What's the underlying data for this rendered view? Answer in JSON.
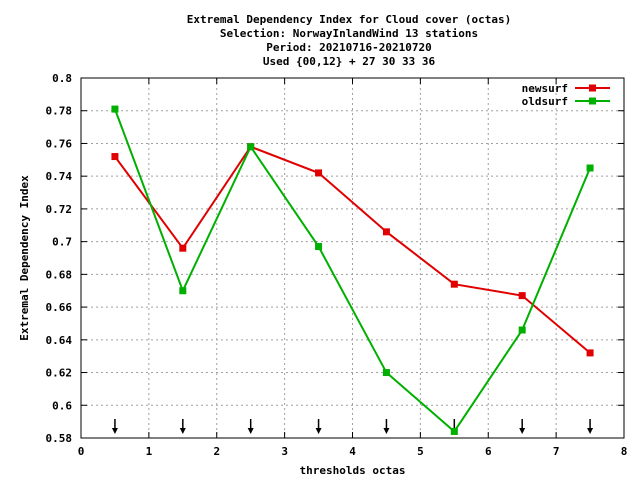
{
  "chart_data": {
    "type": "line",
    "title_lines": [
      "Extremal Dependency Index  for Cloud cover (octas)",
      "Selection: NorwayInlandWind     13 stations",
      "Period: 20210716-20210720",
      "Used {00,12} + 27 30 33 36"
    ],
    "xlabel": "thresholds octas",
    "ylabel": "Extremal Dependency Index",
    "xlim": [
      0,
      8
    ],
    "ylim": [
      0.58,
      0.8
    ],
    "xticks": [
      0,
      1,
      2,
      3,
      4,
      5,
      6,
      7,
      8
    ],
    "yticks": [
      0.58,
      0.6,
      0.62,
      0.64,
      0.66,
      0.68,
      0.7,
      0.72,
      0.74,
      0.76,
      0.78,
      0.8
    ],
    "ytick_labels": [
      "0.58",
      "0.6",
      "0.62",
      "0.64",
      "0.66",
      "0.68",
      "0.7",
      "0.72",
      "0.74",
      "0.76",
      "0.78",
      "0.8"
    ],
    "grid": true,
    "legend_position": "top-right",
    "x": [
      0.5,
      1.5,
      2.5,
      3.5,
      4.5,
      5.5,
      6.5,
      7.5
    ],
    "threshold_arrows_x": [
      0.5,
      1.5,
      2.5,
      3.5,
      4.5,
      5.5,
      6.5,
      7.5
    ],
    "series": [
      {
        "name": "newsurf",
        "color": "#e00000",
        "values": [
          0.752,
          0.696,
          0.758,
          0.742,
          0.706,
          0.674,
          0.667,
          0.632
        ]
      },
      {
        "name": "oldsurf",
        "color": "#00b000",
        "values": [
          0.781,
          0.67,
          0.758,
          0.697,
          0.62,
          0.584,
          0.646,
          0.745
        ]
      }
    ]
  }
}
